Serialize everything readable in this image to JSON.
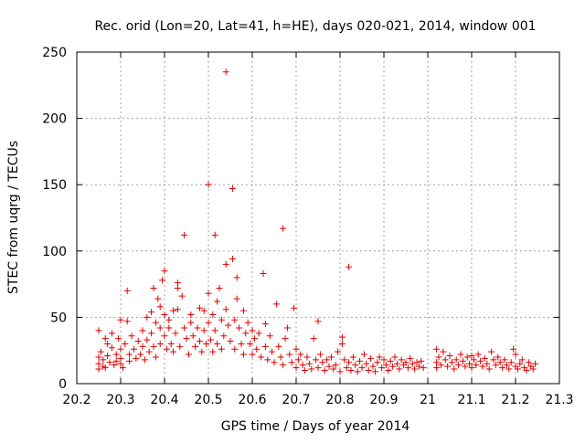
{
  "chart_data": {
    "type": "scatter",
    "title": "Rec. orid (Lon=20, Lat=41, h=HE), days 020-021, 2014, window 001",
    "xlabel": "GPS time / Days of year 2014",
    "ylabel": "STEC from uqrg / TECUs",
    "xlim": [
      20.2,
      21.3
    ],
    "ylim": [
      0,
      250
    ],
    "xticks": [
      "20.2",
      "20.3",
      "20.4",
      "20.5",
      "20.6",
      "20.7",
      "20.8",
      "20.9",
      "21",
      "21.1",
      "21.2",
      "21.3"
    ],
    "yticks": [
      "0",
      "50",
      "100",
      "150",
      "200",
      "250"
    ],
    "grid": true,
    "marker": "+",
    "color": "#e00000",
    "points": [
      [
        20.25,
        40
      ],
      [
        20.25,
        20
      ],
      [
        20.25,
        15
      ],
      [
        20.25,
        11
      ],
      [
        20.255,
        24
      ],
      [
        20.26,
        18
      ],
      [
        20.26,
        13
      ],
      [
        20.265,
        34
      ],
      [
        20.265,
        12
      ],
      [
        20.27,
        30
      ],
      [
        20.27,
        21
      ],
      [
        20.275,
        16
      ],
      [
        20.28,
        38
      ],
      [
        20.28,
        27
      ],
      [
        20.285,
        14
      ],
      [
        20.29,
        22
      ],
      [
        20.29,
        17
      ],
      [
        20.295,
        34
      ],
      [
        20.3,
        48
      ],
      [
        20.3,
        26
      ],
      [
        20.3,
        19
      ],
      [
        20.3,
        15
      ],
      [
        20.305,
        12
      ],
      [
        20.31,
        30
      ],
      [
        20.315,
        47
      ],
      [
        20.315,
        70
      ],
      [
        20.32,
        22
      ],
      [
        20.32,
        17
      ],
      [
        20.325,
        36
      ],
      [
        20.33,
        26
      ],
      [
        20.335,
        19
      ],
      [
        20.34,
        32
      ],
      [
        20.345,
        22
      ],
      [
        20.35,
        40
      ],
      [
        20.35,
        28
      ],
      [
        20.355,
        18
      ],
      [
        20.36,
        50
      ],
      [
        20.36,
        33
      ],
      [
        20.365,
        24
      ],
      [
        20.37,
        54
      ],
      [
        20.37,
        38
      ],
      [
        20.375,
        72
      ],
      [
        20.375,
        28
      ],
      [
        20.38,
        46
      ],
      [
        20.38,
        20
      ],
      [
        20.385,
        64
      ],
      [
        20.39,
        58
      ],
      [
        20.39,
        42
      ],
      [
        20.39,
        30
      ],
      [
        20.395,
        78
      ],
      [
        20.4,
        85
      ],
      [
        20.4,
        52
      ],
      [
        20.4,
        36
      ],
      [
        20.405,
        26
      ],
      [
        20.41,
        48
      ],
      [
        20.41,
        42
      ],
      [
        20.415,
        30
      ],
      [
        20.42,
        55
      ],
      [
        20.42,
        24
      ],
      [
        20.425,
        38
      ],
      [
        20.43,
        76
      ],
      [
        20.43,
        56
      ],
      [
        20.43,
        72
      ],
      [
        20.435,
        28
      ],
      [
        20.44,
        66
      ],
      [
        20.445,
        112
      ],
      [
        20.445,
        42
      ],
      [
        20.45,
        34
      ],
      [
        20.455,
        22
      ],
      [
        20.46,
        52
      ],
      [
        20.46,
        46
      ],
      [
        20.465,
        36
      ],
      [
        20.47,
        28
      ],
      [
        20.475,
        42
      ],
      [
        20.48,
        57
      ],
      [
        20.48,
        32
      ],
      [
        20.485,
        24
      ],
      [
        20.49,
        40
      ],
      [
        20.49,
        55
      ],
      [
        20.495,
        30
      ],
      [
        20.5,
        150
      ],
      [
        20.5,
        68
      ],
      [
        20.5,
        46
      ],
      [
        20.505,
        33
      ],
      [
        20.51,
        52
      ],
      [
        20.51,
        24
      ],
      [
        20.515,
        112
      ],
      [
        20.515,
        40
      ],
      [
        20.52,
        62
      ],
      [
        20.52,
        30
      ],
      [
        20.525,
        72
      ],
      [
        20.53,
        48
      ],
      [
        20.53,
        26
      ],
      [
        20.535,
        36
      ],
      [
        20.54,
        235
      ],
      [
        20.54,
        90
      ],
      [
        20.54,
        56
      ],
      [
        20.545,
        44
      ],
      [
        20.55,
        32
      ],
      [
        20.555,
        147
      ],
      [
        20.555,
        94
      ],
      [
        20.56,
        48
      ],
      [
        20.56,
        26
      ],
      [
        20.565,
        80
      ],
      [
        20.565,
        64
      ],
      [
        20.57,
        42
      ],
      [
        20.575,
        30
      ],
      [
        20.58,
        55
      ],
      [
        20.58,
        22
      ],
      [
        20.585,
        38
      ],
      [
        20.59,
        46
      ],
      [
        20.595,
        30
      ],
      [
        20.6,
        40
      ],
      [
        20.6,
        22
      ],
      [
        20.605,
        34
      ],
      [
        20.61,
        26
      ],
      [
        20.615,
        38
      ],
      [
        20.62,
        20
      ],
      [
        20.625,
        83
      ],
      [
        20.63,
        45
      ],
      [
        20.63,
        28
      ],
      [
        20.635,
        18
      ],
      [
        20.64,
        36
      ],
      [
        20.645,
        24
      ],
      [
        20.65,
        16
      ],
      [
        20.655,
        60
      ],
      [
        20.66,
        28
      ],
      [
        20.665,
        20
      ],
      [
        20.67,
        117
      ],
      [
        20.67,
        14
      ],
      [
        20.675,
        34
      ],
      [
        20.68,
        42
      ],
      [
        20.685,
        22
      ],
      [
        20.69,
        16
      ],
      [
        20.695,
        57
      ],
      [
        20.7,
        26
      ],
      [
        20.7,
        12
      ],
      [
        20.705,
        18
      ],
      [
        20.71,
        22
      ],
      [
        20.715,
        14
      ],
      [
        20.72,
        10
      ],
      [
        20.725,
        20
      ],
      [
        20.73,
        15
      ],
      [
        20.735,
        11
      ],
      [
        20.74,
        34
      ],
      [
        20.745,
        18
      ],
      [
        20.75,
        47
      ],
      [
        20.75,
        12
      ],
      [
        20.755,
        22
      ],
      [
        20.76,
        16
      ],
      [
        20.765,
        10
      ],
      [
        20.77,
        18
      ],
      [
        20.775,
        13
      ],
      [
        20.78,
        20
      ],
      [
        20.785,
        11
      ],
      [
        20.79,
        14
      ],
      [
        20.795,
        24
      ],
      [
        20.8,
        9
      ],
      [
        20.805,
        30
      ],
      [
        20.805,
        35
      ],
      [
        20.81,
        18
      ],
      [
        20.815,
        12
      ],
      [
        20.82,
        88
      ],
      [
        20.82,
        16
      ],
      [
        20.825,
        10
      ],
      [
        20.83,
        20
      ],
      [
        20.835,
        14
      ],
      [
        20.84,
        9
      ],
      [
        20.845,
        17
      ],
      [
        20.85,
        12
      ],
      [
        20.855,
        22
      ],
      [
        20.86,
        15
      ],
      [
        20.865,
        10
      ],
      [
        20.87,
        19
      ],
      [
        20.875,
        13
      ],
      [
        20.88,
        9
      ],
      [
        20.885,
        16
      ],
      [
        20.89,
        20
      ],
      [
        20.895,
        12
      ],
      [
        20.9,
        18
      ],
      [
        20.905,
        14
      ],
      [
        20.91,
        10
      ],
      [
        20.915,
        17
      ],
      [
        20.92,
        13
      ],
      [
        20.925,
        20
      ],
      [
        20.93,
        15
      ],
      [
        20.935,
        11
      ],
      [
        20.94,
        18
      ],
      [
        20.945,
        14
      ],
      [
        20.95,
        16
      ],
      [
        20.955,
        12
      ],
      [
        20.96,
        19
      ],
      [
        20.965,
        15
      ],
      [
        20.97,
        11
      ],
      [
        20.975,
        16
      ],
      [
        20.98,
        13
      ],
      [
        20.985,
        17
      ],
      [
        20.99,
        12
      ],
      [
        21.02,
        26
      ],
      [
        21.02,
        16
      ],
      [
        21.02,
        12
      ],
      [
        21.025,
        20
      ],
      [
        21.03,
        14
      ],
      [
        21.035,
        24
      ],
      [
        21.04,
        18
      ],
      [
        21.045,
        13
      ],
      [
        21.05,
        21
      ],
      [
        21.055,
        16
      ],
      [
        21.06,
        11
      ],
      [
        21.065,
        18
      ],
      [
        21.07,
        14
      ],
      [
        21.075,
        22
      ],
      [
        21.08,
        17
      ],
      [
        21.085,
        13
      ],
      [
        21.09,
        20
      ],
      [
        21.095,
        15
      ],
      [
        21.1,
        21
      ],
      [
        21.1,
        12
      ],
      [
        21.105,
        18
      ],
      [
        21.11,
        14
      ],
      [
        21.115,
        22
      ],
      [
        21.12,
        17
      ],
      [
        21.125,
        13
      ],
      [
        21.13,
        19
      ],
      [
        21.135,
        15
      ],
      [
        21.14,
        11
      ],
      [
        21.145,
        24
      ],
      [
        21.15,
        18
      ],
      [
        21.155,
        14
      ],
      [
        21.16,
        20
      ],
      [
        21.165,
        16
      ],
      [
        21.17,
        12
      ],
      [
        21.175,
        18
      ],
      [
        21.18,
        14
      ],
      [
        21.185,
        11
      ],
      [
        21.19,
        16
      ],
      [
        21.195,
        26
      ],
      [
        21.2,
        13
      ],
      [
        21.2,
        22
      ],
      [
        21.205,
        11
      ],
      [
        21.21,
        15
      ],
      [
        21.215,
        18
      ],
      [
        21.22,
        12
      ],
      [
        21.225,
        10
      ],
      [
        21.23,
        16
      ],
      [
        21.235,
        13
      ],
      [
        21.24,
        11
      ],
      [
        21.245,
        15
      ]
    ]
  }
}
